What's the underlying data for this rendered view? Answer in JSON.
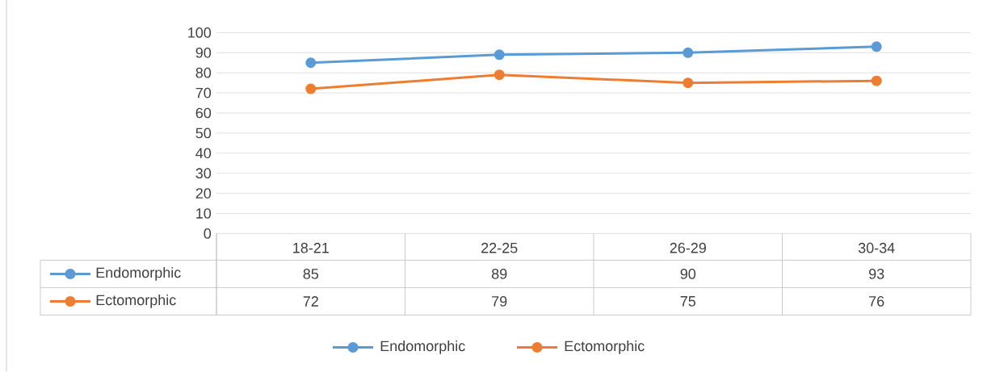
{
  "chart_data": {
    "type": "line",
    "categories": [
      "18-21",
      "22-25",
      "26-29",
      "30-34"
    ],
    "series": [
      {
        "name": "Endomorphic",
        "color": "#5b9bd5",
        "values": [
          85,
          89,
          90,
          93
        ]
      },
      {
        "name": "Ectomorphic",
        "color": "#ed7d31",
        "values": [
          72,
          79,
          75,
          76
        ]
      }
    ],
    "ylim": [
      0,
      100
    ],
    "yticks": [
      0,
      10,
      20,
      30,
      40,
      50,
      60,
      70,
      80,
      90,
      100
    ],
    "grid": "y",
    "legend": "bottom",
    "marker": "circle",
    "data_labels": true
  }
}
